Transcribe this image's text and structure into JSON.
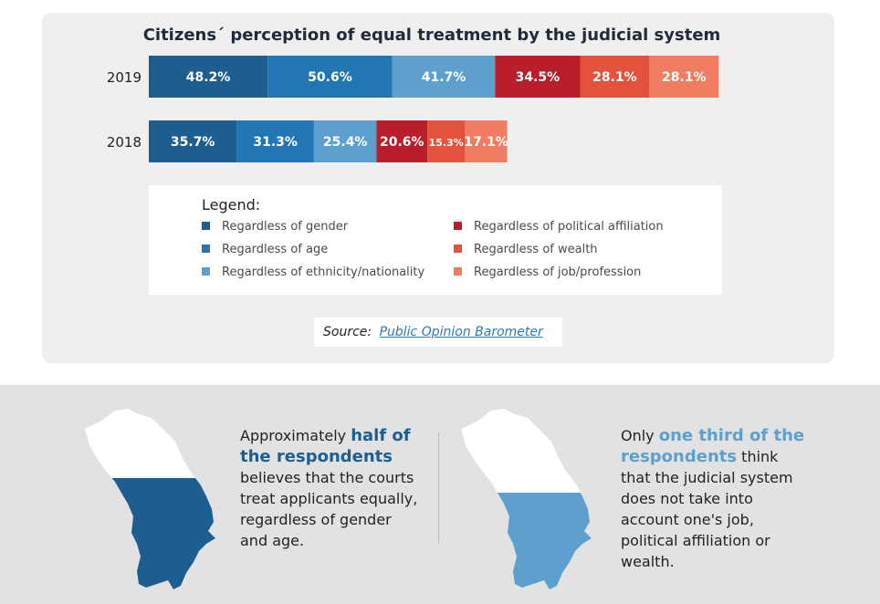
{
  "chart_data": {
    "type": "bar",
    "orientation": "horizontal",
    "stacked": true,
    "title": "Citizens´ perception of equal treatment by the judicial system",
    "categories": [
      "2019",
      "2018"
    ],
    "series": [
      {
        "name": "Regardless of gender",
        "color": "#1c5e90",
        "values": [
          48.2,
          35.7
        ],
        "labels": [
          "48.2%",
          "35.7%"
        ]
      },
      {
        "name": "Regardless of age",
        "color": "#2176b3",
        "values": [
          50.6,
          31.3
        ],
        "labels": [
          "50.6%",
          "31.3%"
        ]
      },
      {
        "name": "Regardless of ethnicity/nationality",
        "color": "#5da0cd",
        "values": [
          41.7,
          25.4
        ],
        "labels": [
          "41.7%",
          "25.4%"
        ]
      },
      {
        "name": "Regardless of political affiliation",
        "color": "#b81f2a",
        "values": [
          34.5,
          20.6
        ],
        "labels": [
          "34.5%",
          "20.6%"
        ]
      },
      {
        "name": "Regardless of wealth",
        "color": "#e3523c",
        "values": [
          28.1,
          15.3
        ],
        "labels": [
          "28.1%",
          "15.3%"
        ]
      },
      {
        "name": "Regardless of job/profession",
        "color": "#f07c62",
        "values": [
          28.1,
          17.1
        ],
        "labels": [
          "28.1%",
          "17.1%"
        ]
      }
    ],
    "legend_title": "Legend:",
    "legend_position": "bottom",
    "grid": false
  },
  "source": {
    "label": "Source:",
    "link_text": "Public Opinion Barometer"
  },
  "info": {
    "left": {
      "highlight": "half of the respondents",
      "before": "Approximately ",
      "after": " believes that the courts treat applicants equally, regardless of gender and age.",
      "color": "#1c5e90",
      "map_icon": "moldova-map-icon"
    },
    "right": {
      "highlight": "one third of the respondents",
      "before": "Only ",
      "after": " think that the judicial system does not take into account one's job, political affiliation or wealth.",
      "color": "#5da0cd",
      "map_icon": "moldova-map-icon"
    }
  }
}
